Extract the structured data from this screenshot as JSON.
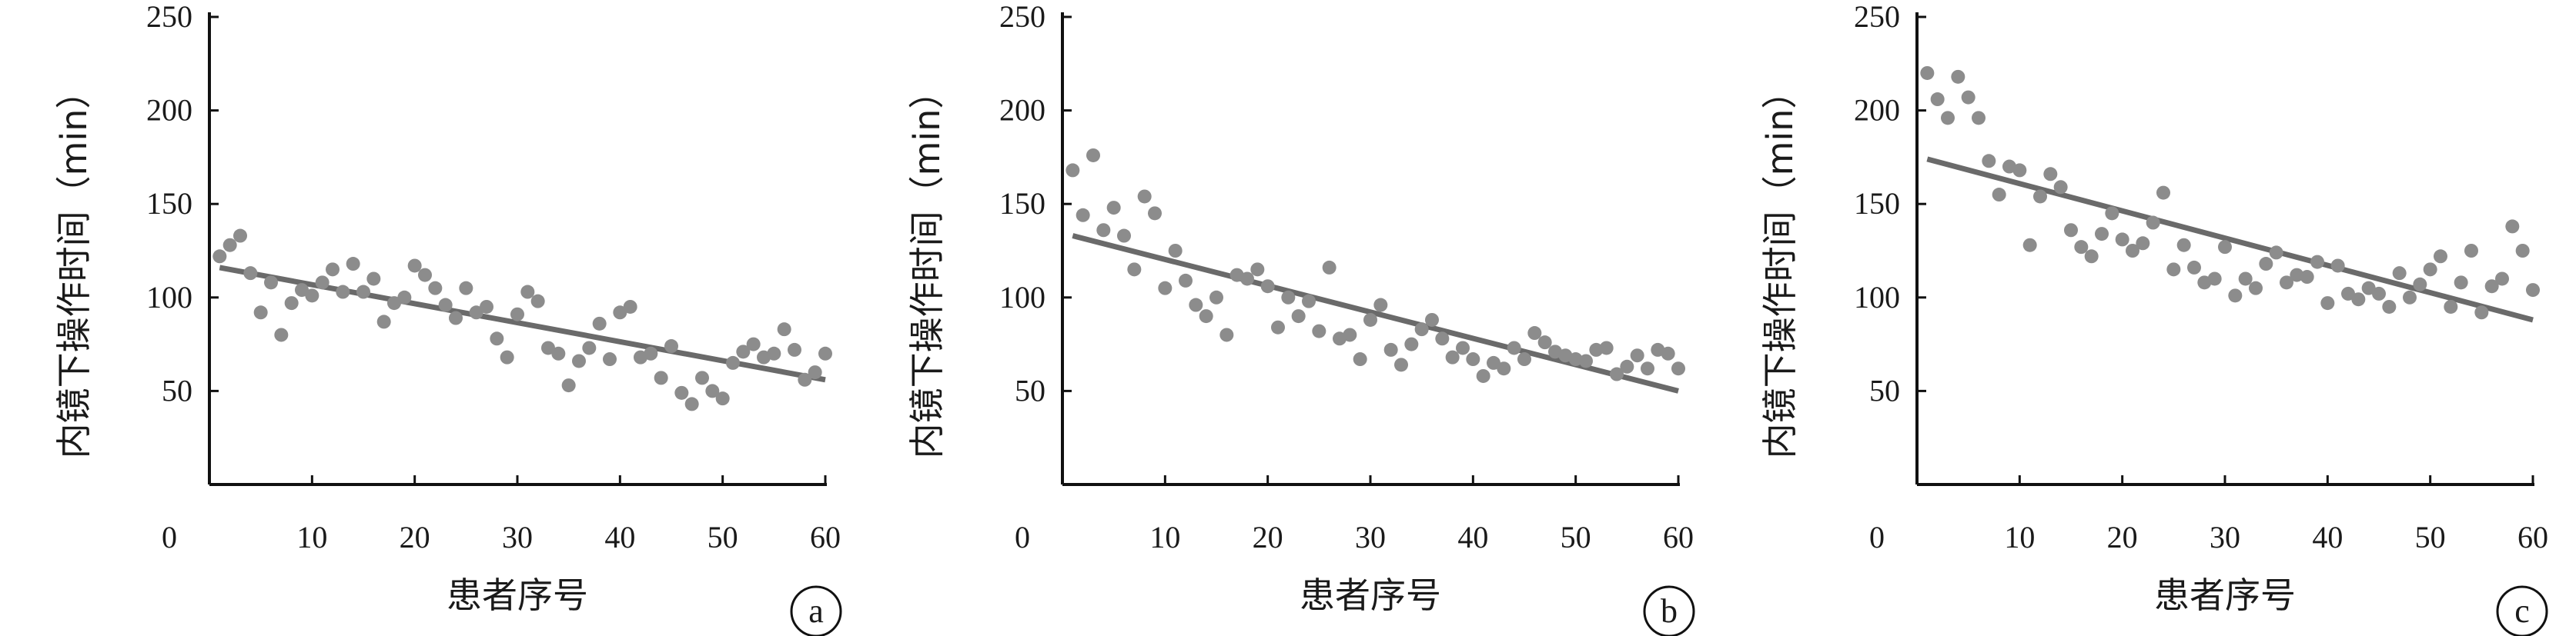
{
  "chart_data": [
    {
      "type": "scatter",
      "panel_label": "a",
      "xlabel": "患者序号",
      "ylabel": "内镜下操作时间（min）",
      "xlim": [
        0,
        60
      ],
      "ylim": [
        0,
        250
      ],
      "x_ticks": [
        "0",
        "10",
        "20",
        "30",
        "40",
        "50",
        "60"
      ],
      "y_ticks": [
        "50",
        "100",
        "150",
        "200",
        "250"
      ],
      "points": [
        [
          1,
          122
        ],
        [
          2,
          128
        ],
        [
          3,
          133
        ],
        [
          4,
          113
        ],
        [
          5,
          92
        ],
        [
          6,
          108
        ],
        [
          7,
          80
        ],
        [
          8,
          97
        ],
        [
          9,
          104
        ],
        [
          10,
          101
        ],
        [
          11,
          108
        ],
        [
          12,
          115
        ],
        [
          13,
          103
        ],
        [
          14,
          118
        ],
        [
          15,
          103
        ],
        [
          16,
          110
        ],
        [
          17,
          87
        ],
        [
          18,
          97
        ],
        [
          19,
          100
        ],
        [
          20,
          117
        ],
        [
          21,
          112
        ],
        [
          22,
          105
        ],
        [
          23,
          96
        ],
        [
          24,
          89
        ],
        [
          25,
          105
        ],
        [
          26,
          92
        ],
        [
          27,
          95
        ],
        [
          28,
          78
        ],
        [
          29,
          68
        ],
        [
          30,
          91
        ],
        [
          31,
          103
        ],
        [
          32,
          98
        ],
        [
          33,
          73
        ],
        [
          34,
          70
        ],
        [
          35,
          53
        ],
        [
          36,
          66
        ],
        [
          37,
          73
        ],
        [
          38,
          86
        ],
        [
          39,
          67
        ],
        [
          40,
          92
        ],
        [
          41,
          95
        ],
        [
          42,
          68
        ],
        [
          43,
          70
        ],
        [
          44,
          57
        ],
        [
          45,
          74
        ],
        [
          46,
          49
        ],
        [
          47,
          43
        ],
        [
          48,
          57
        ],
        [
          49,
          50
        ],
        [
          50,
          46
        ],
        [
          51,
          65
        ],
        [
          52,
          71
        ],
        [
          53,
          75
        ],
        [
          54,
          68
        ],
        [
          55,
          70
        ],
        [
          56,
          83
        ],
        [
          57,
          72
        ],
        [
          58,
          56
        ],
        [
          59,
          60
        ],
        [
          60,
          70
        ]
      ],
      "trendline": {
        "x": [
          1,
          60
        ],
        "y": [
          116,
          56
        ]
      }
    },
    {
      "type": "scatter",
      "panel_label": "b",
      "xlabel": "患者序号",
      "ylabel": "内镜下操作时间（min）",
      "xlim": [
        0,
        60
      ],
      "ylim": [
        0,
        250
      ],
      "x_ticks": [
        "0",
        "10",
        "20",
        "30",
        "40",
        "50",
        "60"
      ],
      "y_ticks": [
        "50",
        "100",
        "150",
        "200",
        "250"
      ],
      "points": [
        [
          1,
          168
        ],
        [
          2,
          144
        ],
        [
          3,
          176
        ],
        [
          4,
          136
        ],
        [
          5,
          148
        ],
        [
          6,
          133
        ],
        [
          7,
          115
        ],
        [
          8,
          154
        ],
        [
          9,
          145
        ],
        [
          10,
          105
        ],
        [
          11,
          125
        ],
        [
          12,
          109
        ],
        [
          13,
          96
        ],
        [
          14,
          90
        ],
        [
          15,
          100
        ],
        [
          16,
          80
        ],
        [
          17,
          112
        ],
        [
          18,
          110
        ],
        [
          19,
          115
        ],
        [
          20,
          106
        ],
        [
          21,
          84
        ],
        [
          22,
          100
        ],
        [
          23,
          90
        ],
        [
          24,
          98
        ],
        [
          25,
          82
        ],
        [
          26,
          116
        ],
        [
          27,
          78
        ],
        [
          28,
          80
        ],
        [
          29,
          67
        ],
        [
          30,
          88
        ],
        [
          31,
          96
        ],
        [
          32,
          72
        ],
        [
          33,
          64
        ],
        [
          34,
          75
        ],
        [
          35,
          83
        ],
        [
          36,
          88
        ],
        [
          37,
          78
        ],
        [
          38,
          68
        ],
        [
          39,
          73
        ],
        [
          40,
          67
        ],
        [
          41,
          58
        ],
        [
          42,
          65
        ],
        [
          43,
          62
        ],
        [
          44,
          73
        ],
        [
          45,
          67
        ],
        [
          46,
          81
        ],
        [
          47,
          76
        ],
        [
          48,
          71
        ],
        [
          49,
          69
        ],
        [
          50,
          67
        ],
        [
          51,
          66
        ],
        [
          52,
          72
        ],
        [
          53,
          73
        ],
        [
          54,
          59
        ],
        [
          55,
          63
        ],
        [
          56,
          69
        ],
        [
          57,
          62
        ],
        [
          58,
          72
        ],
        [
          59,
          70
        ],
        [
          60,
          62
        ]
      ],
      "trendline": {
        "x": [
          1,
          60
        ],
        "y": [
          133,
          50
        ]
      }
    },
    {
      "type": "scatter",
      "panel_label": "c",
      "xlabel": "患者序号",
      "ylabel": "内镜下操作时间（min）",
      "xlim": [
        0,
        60
      ],
      "ylim": [
        0,
        250
      ],
      "x_ticks": [
        "0",
        "10",
        "20",
        "30",
        "40",
        "50",
        "60"
      ],
      "y_ticks": [
        "50",
        "100",
        "150",
        "200",
        "250"
      ],
      "points": [
        [
          1,
          220
        ],
        [
          2,
          206
        ],
        [
          3,
          196
        ],
        [
          4,
          218
        ],
        [
          5,
          207
        ],
        [
          6,
          196
        ],
        [
          7,
          173
        ],
        [
          8,
          155
        ],
        [
          9,
          170
        ],
        [
          10,
          168
        ],
        [
          11,
          128
        ],
        [
          12,
          154
        ],
        [
          13,
          166
        ],
        [
          14,
          159
        ],
        [
          15,
          136
        ],
        [
          16,
          127
        ],
        [
          17,
          122
        ],
        [
          18,
          134
        ],
        [
          19,
          145
        ],
        [
          20,
          131
        ],
        [
          21,
          125
        ],
        [
          22,
          129
        ],
        [
          23,
          140
        ],
        [
          24,
          156
        ],
        [
          25,
          115
        ],
        [
          26,
          128
        ],
        [
          27,
          116
        ],
        [
          28,
          108
        ],
        [
          29,
          110
        ],
        [
          30,
          127
        ],
        [
          31,
          101
        ],
        [
          32,
          110
        ],
        [
          33,
          105
        ],
        [
          34,
          118
        ],
        [
          35,
          124
        ],
        [
          36,
          108
        ],
        [
          37,
          112
        ],
        [
          38,
          111
        ],
        [
          39,
          119
        ],
        [
          40,
          97
        ],
        [
          41,
          117
        ],
        [
          42,
          102
        ],
        [
          43,
          99
        ],
        [
          44,
          105
        ],
        [
          45,
          102
        ],
        [
          46,
          95
        ],
        [
          47,
          113
        ],
        [
          48,
          100
        ],
        [
          49,
          107
        ],
        [
          50,
          115
        ],
        [
          51,
          122
        ],
        [
          52,
          95
        ],
        [
          53,
          108
        ],
        [
          54,
          125
        ],
        [
          55,
          92
        ],
        [
          56,
          106
        ],
        [
          57,
          110
        ],
        [
          58,
          138
        ],
        [
          59,
          125
        ],
        [
          60,
          104
        ]
      ],
      "trendline": {
        "x": [
          1,
          60
        ],
        "y": [
          174,
          88
        ]
      }
    }
  ]
}
